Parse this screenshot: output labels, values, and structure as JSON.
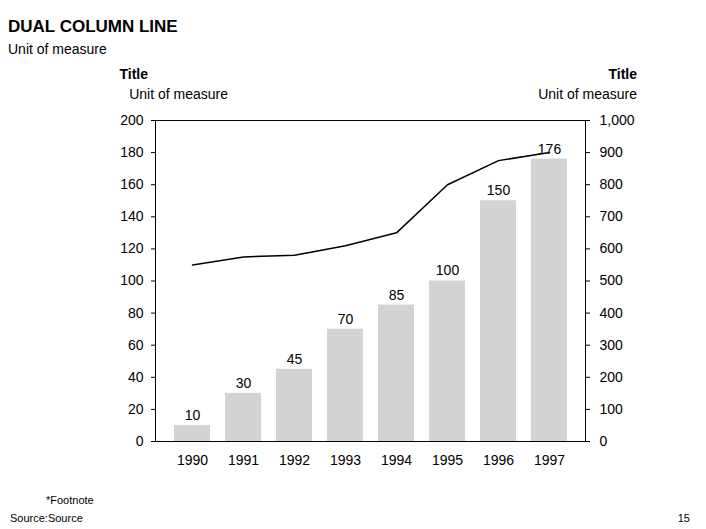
{
  "chart_data": {
    "type": "bar",
    "title": "DUAL COLUMN LINE",
    "subtitle": "Unit of measure",
    "y_title": "Title",
    "y_unit": "Unit of measure",
    "y2_title": "Title",
    "y2_unit": "Unit of measure",
    "categories": [
      "1990",
      "1991",
      "1992",
      "1993",
      "1994",
      "1995",
      "1996",
      "1997"
    ],
    "series": [
      {
        "type": "bar",
        "color": "#d3d3d3",
        "values": [
          10,
          30,
          45,
          70,
          85,
          100,
          150,
          176
        ],
        "data_labels": true
      },
      {
        "type": "line",
        "axis": "y2",
        "color": "#000000",
        "values": [
          550,
          575,
          580,
          610,
          650,
          800,
          875,
          900
        ]
      }
    ],
    "ylim": [
      0,
      200
    ],
    "yticks": [
      0,
      20,
      40,
      60,
      80,
      100,
      120,
      140,
      160,
      180,
      200
    ],
    "y2lim": [
      0,
      1000
    ],
    "y2ticks": [
      0,
      100,
      200,
      300,
      400,
      500,
      600,
      700,
      800,
      900,
      {
        "value": 1000,
        "label": "1,000"
      }
    ],
    "data_labels": true,
    "grid": false,
    "footnote": "*Footnote",
    "source": "Source:Source",
    "page_number": "15"
  }
}
